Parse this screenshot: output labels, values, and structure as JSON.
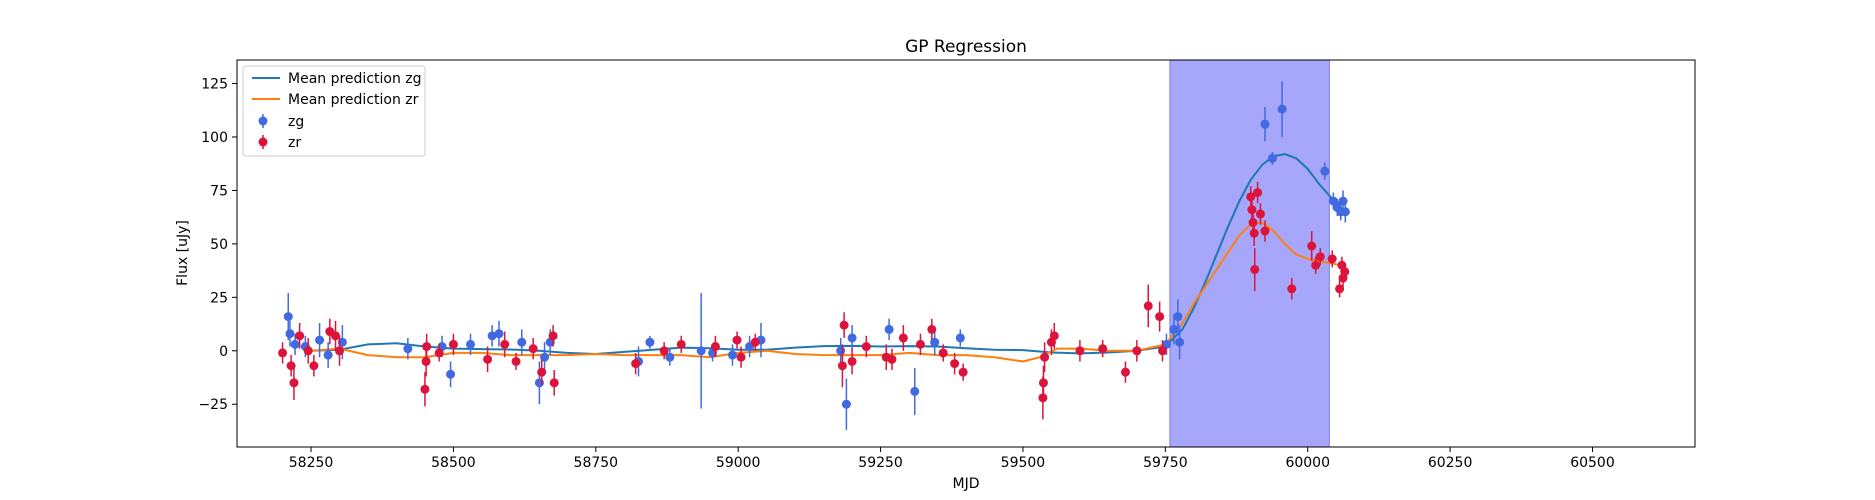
{
  "chart_data": {
    "type": "scatter",
    "title": "GP Regression",
    "xlabel": "MJD",
    "ylabel": "Flux [uJy]",
    "xlim": [
      58120,
      60680
    ],
    "ylim": [
      -45,
      136
    ],
    "xticks": [
      58250,
      58500,
      58750,
      59000,
      59250,
      59500,
      59750,
      60000,
      60250,
      60500
    ],
    "yticks": [
      -25,
      0,
      25,
      50,
      75,
      100,
      125
    ],
    "grid": false,
    "legend_position": "top-left",
    "shaded_region": {
      "x": [
        59758,
        60038
      ],
      "color": "#a6a6fa"
    },
    "series": [
      {
        "name": "Mean prediction zg",
        "kind": "line",
        "color": "#1f77b4",
        "x": [
          58250,
          58300,
          58350,
          58400,
          58450,
          58500,
          58550,
          58600,
          58650,
          58700,
          58750,
          58800,
          58850,
          58900,
          58950,
          59000,
          59050,
          59100,
          59150,
          59200,
          59250,
          59300,
          59350,
          59400,
          59450,
          59500,
          59550,
          59600,
          59650,
          59700,
          59750,
          59780,
          59800,
          59820,
          59840,
          59860,
          59880,
          59900,
          59920,
          59940,
          59960,
          59980,
          60000,
          60020,
          60040,
          60060
        ],
        "y": [
          0,
          0.5,
          3,
          3.5,
          2,
          1,
          0.8,
          0.6,
          0,
          -1,
          -1.5,
          -0.5,
          0.5,
          1.5,
          1.2,
          0.5,
          0.5,
          1.5,
          2.2,
          2.3,
          2,
          2.2,
          2,
          1.2,
          0.5,
          0.3,
          -0.8,
          -1.2,
          -0.8,
          0,
          2,
          10,
          20,
          32,
          45,
          58,
          70,
          80,
          87,
          91,
          92,
          90,
          85,
          78,
          72,
          68
        ]
      },
      {
        "name": "Mean prediction zr",
        "kind": "line",
        "color": "#ff7f0e",
        "x": [
          58250,
          58300,
          58350,
          58400,
          58450,
          58500,
          58550,
          58600,
          58650,
          58700,
          58750,
          58800,
          58850,
          58900,
          58950,
          59000,
          59050,
          59100,
          59150,
          59200,
          59250,
          59300,
          59350,
          59400,
          59450,
          59500,
          59530,
          59560,
          59600,
          59650,
          59700,
          59750,
          59780,
          59800,
          59820,
          59840,
          59860,
          59880,
          59900,
          59920,
          59940,
          59960,
          59980,
          60000,
          60020,
          60040,
          60060
        ],
        "y": [
          0,
          1,
          -2,
          -3,
          -3,
          -1,
          -1,
          -2,
          -2,
          -2,
          -1.5,
          -2,
          -2,
          -2,
          -3,
          -1,
          0,
          -1.5,
          -2,
          -2,
          -2,
          -1,
          -2,
          -2,
          -3,
          -5,
          -3,
          1,
          1,
          0,
          0,
          3,
          13,
          22,
          30,
          38,
          46,
          54,
          59,
          60,
          56,
          50,
          45,
          43,
          42,
          41,
          40
        ]
      },
      {
        "name": "zg",
        "kind": "errorbar",
        "color": "#4169e1",
        "points": [
          [
            58210,
            16,
            11
          ],
          [
            58213,
            8,
            6
          ],
          [
            58222,
            3,
            5
          ],
          [
            58240,
            2,
            5
          ],
          [
            58265,
            5,
            8
          ],
          [
            58280,
            -2,
            6
          ],
          [
            58305,
            4,
            8
          ],
          [
            58420,
            1,
            5
          ],
          [
            58480,
            2,
            5
          ],
          [
            58495,
            -11,
            6
          ],
          [
            58530,
            3,
            5
          ],
          [
            58568,
            7,
            5
          ],
          [
            58580,
            8,
            6
          ],
          [
            58620,
            4,
            6
          ],
          [
            58651,
            -15,
            10
          ],
          [
            58660,
            -3,
            7
          ],
          [
            58670,
            4,
            6
          ],
          [
            58825,
            -5,
            7
          ],
          [
            58845,
            4,
            3
          ],
          [
            58880,
            -3,
            4
          ],
          [
            58935,
            0,
            27
          ],
          [
            58955,
            -1,
            4
          ],
          [
            58990,
            -2,
            5
          ],
          [
            59020,
            2,
            5
          ],
          [
            59040,
            5,
            8
          ],
          [
            59180,
            0,
            6
          ],
          [
            59190,
            -25,
            12
          ],
          [
            59200,
            6,
            6
          ],
          [
            59265,
            10,
            5
          ],
          [
            59310,
            -19,
            11
          ],
          [
            59345,
            4,
            6
          ],
          [
            59390,
            6,
            4
          ],
          [
            59752,
            3,
            5
          ],
          [
            59765,
            10,
            7
          ],
          [
            59772,
            16,
            8
          ],
          [
            59775,
            4,
            8
          ],
          [
            59925,
            106,
            8
          ],
          [
            59938,
            90,
            3
          ],
          [
            59955,
            113,
            13
          ],
          [
            60030,
            84,
            4
          ],
          [
            60045,
            70,
            4
          ],
          [
            60052,
            67,
            4
          ],
          [
            60058,
            65,
            4
          ],
          [
            60062,
            70,
            5
          ],
          [
            60066,
            65,
            5
          ]
        ]
      },
      {
        "name": "zr",
        "kind": "errorbar",
        "color": "#dc143c",
        "points": [
          [
            58200,
            -1,
            5
          ],
          [
            58215,
            -7,
            5
          ],
          [
            58220,
            -15,
            8
          ],
          [
            58230,
            7,
            6
          ],
          [
            58245,
            0,
            6
          ],
          [
            58255,
            -7,
            5
          ],
          [
            58283,
            9,
            6
          ],
          [
            58293,
            7,
            7
          ],
          [
            58300,
            0,
            7
          ],
          [
            58450,
            -18,
            8
          ],
          [
            58452,
            -5,
            7
          ],
          [
            58453,
            2,
            6
          ],
          [
            58475,
            -1,
            4
          ],
          [
            58500,
            3,
            5
          ],
          [
            58560,
            -4,
            6
          ],
          [
            58590,
            3,
            6
          ],
          [
            58610,
            -5,
            4
          ],
          [
            58640,
            1,
            5
          ],
          [
            58655,
            -10,
            6
          ],
          [
            58675,
            7,
            5
          ],
          [
            58677,
            -15,
            6
          ],
          [
            58820,
            -6,
            5
          ],
          [
            58870,
            0,
            4
          ],
          [
            58900,
            3,
            4
          ],
          [
            58960,
            2,
            5
          ],
          [
            58998,
            5,
            4
          ],
          [
            59005,
            -3,
            5
          ],
          [
            59030,
            4,
            4
          ],
          [
            59183,
            -7,
            10
          ],
          [
            59186,
            12,
            6
          ],
          [
            59200,
            -5,
            6
          ],
          [
            59225,
            2,
            5
          ],
          [
            59260,
            -3,
            6
          ],
          [
            59270,
            -4,
            5
          ],
          [
            59290,
            6,
            6
          ],
          [
            59320,
            3,
            5
          ],
          [
            59340,
            10,
            5
          ],
          [
            59360,
            -1,
            4
          ],
          [
            59380,
            -6,
            5
          ],
          [
            59395,
            -10,
            4
          ],
          [
            59535,
            -22,
            10
          ],
          [
            59536,
            -15,
            8
          ],
          [
            59538,
            -3,
            7
          ],
          [
            59550,
            4,
            6
          ],
          [
            59555,
            7,
            6
          ],
          [
            59600,
            0,
            5
          ],
          [
            59640,
            1,
            4
          ],
          [
            59680,
            -10,
            5
          ],
          [
            59700,
            0,
            5
          ],
          [
            59720,
            21,
            10
          ],
          [
            59740,
            16,
            7
          ],
          [
            59745,
            0,
            5
          ],
          [
            59900,
            72,
            5
          ],
          [
            59902,
            66,
            6
          ],
          [
            59904,
            60,
            5
          ],
          [
            59906,
            55,
            6
          ],
          [
            59907,
            38,
            10
          ],
          [
            59912,
            74,
            5
          ],
          [
            59917,
            64,
            5
          ],
          [
            59925,
            56,
            5
          ],
          [
            59972,
            29,
            5
          ],
          [
            60007,
            49,
            7
          ],
          [
            60014,
            40,
            4
          ],
          [
            60022,
            44,
            4
          ],
          [
            60043,
            43,
            4
          ],
          [
            60056,
            29,
            4
          ],
          [
            60060,
            40,
            4
          ],
          [
            60062,
            34,
            5
          ],
          [
            60065,
            37,
            4
          ]
        ]
      }
    ]
  }
}
